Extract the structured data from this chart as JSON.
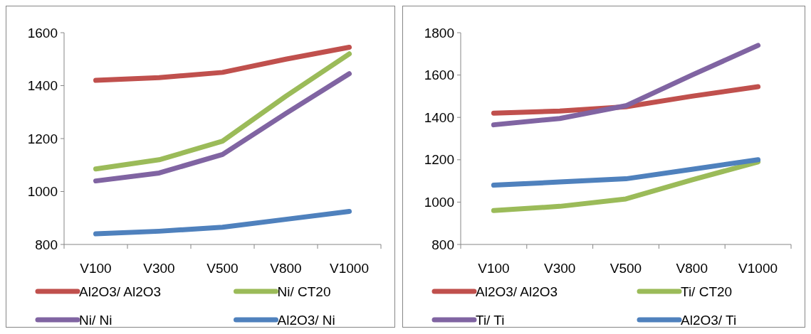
{
  "chart_data": [
    {
      "type": "line",
      "categories": [
        "V100",
        "V300",
        "V500",
        "V800",
        "V1000"
      ],
      "ylim": [
        800,
        1600
      ],
      "yticks": [
        800,
        1000,
        1200,
        1400,
        1600
      ],
      "legend": "bottom",
      "grid": false,
      "marker": "none",
      "line_style": "solid",
      "series": [
        {
          "name": "Al2O3/ Al2O3",
          "color": "#c0504d",
          "values": [
            1420,
            1430,
            1450,
            1500,
            1545
          ]
        },
        {
          "name": "Ni/ CT20",
          "color": "#9bbb59",
          "values": [
            1085,
            1120,
            1190,
            1360,
            1520
          ]
        },
        {
          "name": "Ni/ Ni",
          "color": "#8064a2",
          "values": [
            1040,
            1070,
            1140,
            1295,
            1445
          ]
        },
        {
          "name": "Al2O3/ Ni",
          "color": "#4f81bd",
          "values": [
            840,
            850,
            865,
            895,
            925
          ]
        }
      ]
    },
    {
      "type": "line",
      "categories": [
        "V100",
        "V300",
        "V500",
        "V800",
        "V1000"
      ],
      "ylim": [
        800,
        1800
      ],
      "yticks": [
        800,
        1000,
        1200,
        1400,
        1600,
        1800
      ],
      "legend": "bottom",
      "grid": false,
      "marker": "none",
      "line_style": "solid",
      "series": [
        {
          "name": "Al2O3/ Al2O3",
          "color": "#c0504d",
          "values": [
            1420,
            1430,
            1450,
            1500,
            1545
          ]
        },
        {
          "name": "Ti/ CT20",
          "color": "#9bbb59",
          "values": [
            960,
            980,
            1015,
            1105,
            1190
          ]
        },
        {
          "name": "Ti/ Ti",
          "color": "#8064a2",
          "values": [
            1365,
            1395,
            1455,
            1600,
            1740
          ]
        },
        {
          "name": "Al2O3/ Ti",
          "color": "#4f81bd",
          "values": [
            1080,
            1095,
            1110,
            1155,
            1200
          ]
        }
      ]
    }
  ]
}
